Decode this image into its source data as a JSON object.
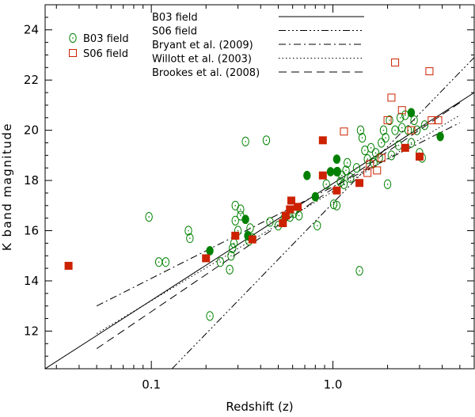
{
  "chart_data": {
    "type": "scatter",
    "x_scale": "log",
    "xlabel": "Redshift (z)",
    "ylabel": "K band magnitude",
    "xlim": [
      0.026,
      6.0
    ],
    "ylim": [
      10.5,
      25.0
    ],
    "x_ticks": [
      {
        "value": 0.1,
        "label": "0.1"
      },
      {
        "value": 1.0,
        "label": "1.0"
      }
    ],
    "y_ticks": [
      {
        "value": 12,
        "label": "12"
      },
      {
        "value": 14,
        "label": "14"
      },
      {
        "value": 16,
        "label": "16"
      },
      {
        "value": 18,
        "label": "18"
      },
      {
        "value": 20,
        "label": "20"
      },
      {
        "value": 22,
        "label": "22"
      },
      {
        "value": 24,
        "label": "24"
      }
    ],
    "colors": {
      "green": "#008000",
      "red": "#cc2200",
      "axis": "#000000"
    },
    "series": [
      {
        "name": "B03 field",
        "marker": "open-circle",
        "color": "#008000",
        "points": [
          [
            0.097,
            16.55
          ],
          [
            0.11,
            14.75
          ],
          [
            0.12,
            14.75
          ],
          [
            0.16,
            16.0
          ],
          [
            0.163,
            15.7
          ],
          [
            0.21,
            12.6
          ],
          [
            0.24,
            14.75
          ],
          [
            0.27,
            14.45
          ],
          [
            0.275,
            15.0
          ],
          [
            0.28,
            15.3
          ],
          [
            0.285,
            15.5
          ],
          [
            0.29,
            16.4
          ],
          [
            0.29,
            17.0
          ],
          [
            0.3,
            16.0
          ],
          [
            0.31,
            16.6
          ],
          [
            0.31,
            16.85
          ],
          [
            0.33,
            19.55
          ],
          [
            0.34,
            15.8
          ],
          [
            0.345,
            15.6
          ],
          [
            0.35,
            16.1
          ],
          [
            0.36,
            15.7
          ],
          [
            0.43,
            19.6
          ],
          [
            0.45,
            16.35
          ],
          [
            0.5,
            16.2
          ],
          [
            0.54,
            16.5
          ],
          [
            0.58,
            16.55
          ],
          [
            0.61,
            16.7
          ],
          [
            0.65,
            16.6
          ],
          [
            0.82,
            16.2
          ],
          [
            0.92,
            17.85
          ],
          [
            1.01,
            17.05
          ],
          [
            1.05,
            17.0
          ],
          [
            1.06,
            18.35
          ],
          [
            1.1,
            17.95
          ],
          [
            1.12,
            18.2
          ],
          [
            1.15,
            17.85
          ],
          [
            1.18,
            18.4
          ],
          [
            1.2,
            18.7
          ],
          [
            1.25,
            18.1
          ],
          [
            1.35,
            18.5
          ],
          [
            1.4,
            14.4
          ],
          [
            1.42,
            20.0
          ],
          [
            1.45,
            19.7
          ],
          [
            1.5,
            19.2
          ],
          [
            1.55,
            18.85
          ],
          [
            1.62,
            19.3
          ],
          [
            1.68,
            18.7
          ],
          [
            1.72,
            19.1
          ],
          [
            1.8,
            18.9
          ],
          [
            1.85,
            19.5
          ],
          [
            1.9,
            20.0
          ],
          [
            1.95,
            19.7
          ],
          [
            2.0,
            17.85
          ],
          [
            2.05,
            20.4
          ],
          [
            2.1,
            19.0
          ],
          [
            2.2,
            20.0
          ],
          [
            2.3,
            19.4
          ],
          [
            2.35,
            20.5
          ],
          [
            2.4,
            20.1
          ],
          [
            2.5,
            20.6
          ],
          [
            2.6,
            20.0
          ],
          [
            2.7,
            19.5
          ],
          [
            2.8,
            20.4
          ],
          [
            2.9,
            20.0
          ],
          [
            3.0,
            19.1
          ],
          [
            3.2,
            20.2
          ],
          [
            3.1,
            18.9
          ]
        ]
      },
      {
        "name": "B03 field (filled)",
        "marker": "filled-circle",
        "color": "#008000",
        "points": [
          [
            0.21,
            15.2
          ],
          [
            0.33,
            16.45
          ],
          [
            0.34,
            15.8
          ],
          [
            0.72,
            18.2
          ],
          [
            0.8,
            17.35
          ],
          [
            0.97,
            18.35
          ],
          [
            1.05,
            18.35
          ],
          [
            1.05,
            18.85
          ],
          [
            2.7,
            20.7
          ],
          [
            3.9,
            19.75
          ]
        ]
      },
      {
        "name": "S06 field",
        "marker": "open-square",
        "color": "#cc2200",
        "points": [
          [
            1.15,
            19.95
          ],
          [
            1.55,
            18.3
          ],
          [
            1.6,
            18.65
          ],
          [
            1.75,
            18.4
          ],
          [
            1.85,
            18.9
          ],
          [
            2.0,
            20.4
          ],
          [
            2.1,
            21.3
          ],
          [
            2.2,
            22.7
          ],
          [
            2.4,
            20.8
          ],
          [
            2.7,
            20.0
          ],
          [
            3.4,
            22.35
          ],
          [
            3.5,
            20.4
          ],
          [
            3.8,
            20.4
          ]
        ]
      },
      {
        "name": "S06 field (filled)",
        "marker": "filled-square",
        "color": "#cc2200",
        "points": [
          [
            0.035,
            14.6
          ],
          [
            0.2,
            14.9
          ],
          [
            0.29,
            15.8
          ],
          [
            0.36,
            15.65
          ],
          [
            0.53,
            16.3
          ],
          [
            0.55,
            16.6
          ],
          [
            0.58,
            16.85
          ],
          [
            0.59,
            17.2
          ],
          [
            0.64,
            16.95
          ],
          [
            0.88,
            19.6
          ],
          [
            0.88,
            18.2
          ],
          [
            1.05,
            17.6
          ],
          [
            1.4,
            17.9
          ],
          [
            2.5,
            19.3
          ],
          [
            3.0,
            18.95
          ]
        ]
      }
    ],
    "lines": [
      {
        "name": "B03 field",
        "dash": "solid",
        "p0": [
          0.026,
          10.5
        ],
        "p1": [
          6.0,
          21.5
        ]
      },
      {
        "name": "S06 field",
        "dash": "dashdotdotdot",
        "p0": [
          0.13,
          10.5
        ],
        "p1": [
          6.0,
          22.9
        ]
      },
      {
        "name": "Bryant et al. (2009)",
        "dash": "dashdot",
        "p0": [
          0.05,
          13.0
        ],
        "p1": [
          5.0,
          20.3
        ]
      },
      {
        "name": "Willott et al. (2003)",
        "dash": "dotted",
        "p0": [
          0.05,
          11.9
        ],
        "p1": [
          5.0,
          20.6
        ]
      },
      {
        "name": "Brookes et al. (2008)",
        "dash": "dashed",
        "p0": [
          0.05,
          11.3
        ],
        "p1": [
          5.0,
          21.1
        ]
      }
    ],
    "legend_markers": [
      {
        "label": "B03 field",
        "marker": "open-circle",
        "color": "#008000"
      },
      {
        "label": "S06 field",
        "marker": "open-square",
        "color": "#cc2200"
      }
    ],
    "legend_lines": [
      {
        "label": "B03 field",
        "dash": "solid"
      },
      {
        "label": "S06 field",
        "dash": "dashdotdotdot"
      },
      {
        "label": "Bryant et al. (2009)",
        "dash": "dashdot"
      },
      {
        "label": "Willott et al. (2003)",
        "dash": "dotted"
      },
      {
        "label": "Brookes et al. (2008)",
        "dash": "dashed"
      }
    ]
  }
}
